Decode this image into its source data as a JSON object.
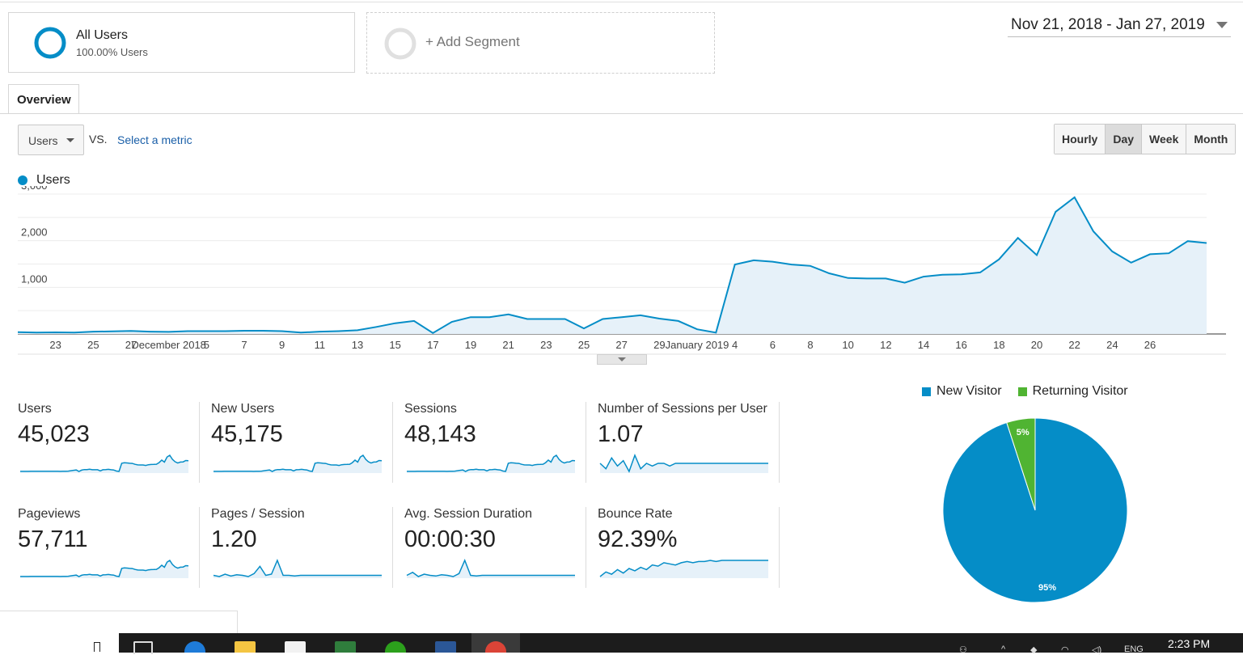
{
  "segments": {
    "active": {
      "title": "All Users",
      "subtitle": "100.00% Users"
    },
    "add_label": "+ Add Segment"
  },
  "date_range": "Nov 21, 2018 - Jan 27, 2019",
  "tabs": [
    {
      "label": "Overview"
    }
  ],
  "metric_selector": {
    "value": "Users",
    "vs_label": "VS.",
    "select_label": "Select a metric"
  },
  "granularity": {
    "options": [
      "Hourly",
      "Day",
      "Week",
      "Month"
    ],
    "selected": "Day"
  },
  "colors": {
    "accent": "#058dc7",
    "fill": "#e6f1f9",
    "returning": "#50b432",
    "link": "#1a5fa8"
  },
  "chart_data": {
    "type": "area",
    "series": [
      {
        "name": "Users",
        "values": [
          40,
          30,
          35,
          30,
          50,
          55,
          65,
          50,
          45,
          60,
          60,
          60,
          70,
          70,
          60,
          30,
          50,
          60,
          80,
          150,
          230,
          280,
          20,
          260,
          360,
          360,
          420,
          320,
          320,
          320,
          120,
          320,
          360,
          400,
          330,
          280,
          100,
          30,
          1490,
          1580,
          1550,
          1490,
          1460,
          1300,
          1200,
          1190,
          1190,
          1100,
          1230,
          1270,
          1280,
          1320,
          1600,
          2060,
          1690,
          2620,
          2930,
          2200,
          1770,
          1530,
          1710,
          1730,
          1990,
          1950
        ]
      }
    ],
    "x_tick_labels": [
      "23",
      "25",
      "27",
      "December 2018",
      "5",
      "7",
      "9",
      "11",
      "13",
      "15",
      "17",
      "19",
      "21",
      "23",
      "25",
      "27",
      "29",
      "January 2019",
      "4",
      "6",
      "8",
      "10",
      "12",
      "14",
      "16",
      "18",
      "20",
      "22",
      "24",
      "26"
    ],
    "y_tick_labels": [
      "1,000",
      "2,000",
      "3,000"
    ],
    "ylim": [
      0,
      3000
    ],
    "grid": true,
    "legend": "top-left"
  },
  "summary_metrics": [
    {
      "label": "Users",
      "value": "45,023"
    },
    {
      "label": "New Users",
      "value": "45,175"
    },
    {
      "label": "Sessions",
      "value": "48,143"
    },
    {
      "label": "Number of Sessions per User",
      "value": "1.07"
    },
    {
      "label": "Pageviews",
      "value": "57,711"
    },
    {
      "label": "Pages / Session",
      "value": "1.20"
    },
    {
      "label": "Avg. Session Duration",
      "value": "00:00:30"
    },
    {
      "label": "Bounce Rate",
      "value": "92.39%"
    }
  ],
  "visitor_pie": {
    "type": "pie",
    "legend": [
      "New Visitor",
      "Returning Visitor"
    ],
    "slices": [
      {
        "name": "New Visitor",
        "value": 95,
        "label": "95%"
      },
      {
        "name": "Returning Visitor",
        "value": 5,
        "label": "5%"
      }
    ]
  },
  "taskbar": {
    "clock": "2:23 PM",
    "language": "ENG",
    "app_icons": [
      "task-view-icon",
      "edge-icon",
      "file-explorer-icon",
      "mail-icon",
      "project-icon",
      "quickbooks-icon",
      "word-icon",
      "chrome-icon"
    ]
  }
}
